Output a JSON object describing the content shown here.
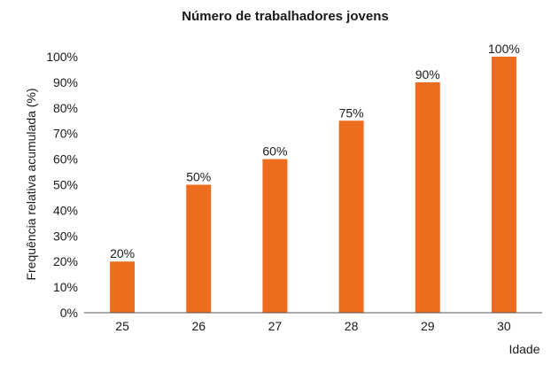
{
  "chart_data": {
    "type": "bar",
    "title": "Número de trabalhadores jovens",
    "xlabel": "Idade",
    "ylabel": "Frequência relativa acumulada (%)",
    "categories": [
      "25",
      "26",
      "27",
      "28",
      "29",
      "30"
    ],
    "values": [
      20,
      50,
      60,
      75,
      90,
      100
    ],
    "data_labels": [
      "20%",
      "50%",
      "60%",
      "75%",
      "90%",
      "100%"
    ],
    "yticks": [
      "0%",
      "10%",
      "20%",
      "30%",
      "40%",
      "50%",
      "60%",
      "70%",
      "80%",
      "90%",
      "100%"
    ],
    "ylim": [
      0,
      100
    ],
    "grid": false,
    "legend": "none",
    "colors": {
      "bar": "#EE6C1E",
      "axis": "#555555",
      "text": "#1a1a1a"
    }
  }
}
